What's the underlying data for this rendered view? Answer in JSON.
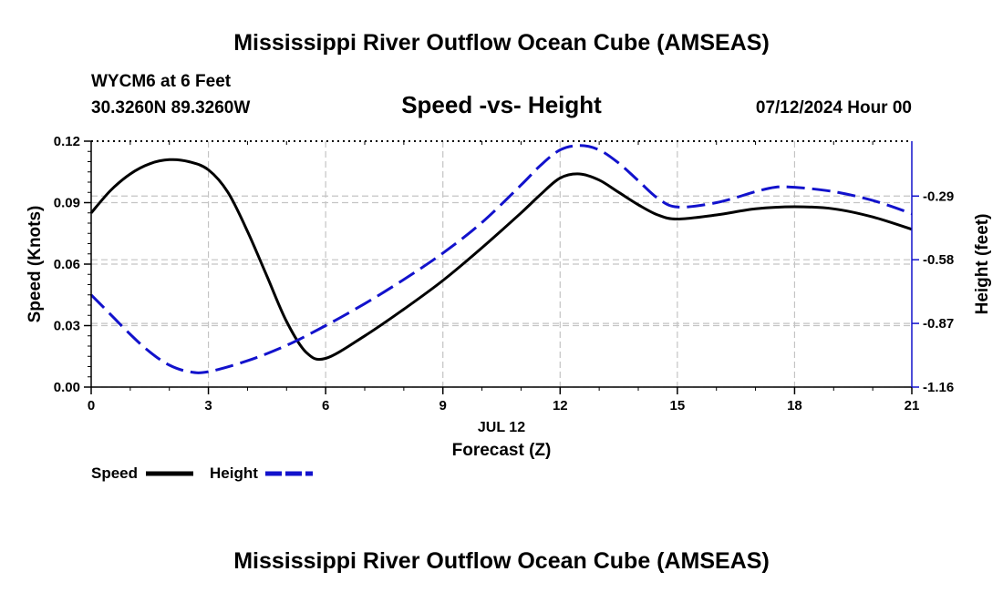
{
  "page": {
    "title": "Mississippi River Outflow Ocean Cube (AMSEAS)",
    "station": "WYCM6 at 6 Feet",
    "coordinates": "30.3260N  89.3260W",
    "datetime": "07/12/2024 Hour 00",
    "footer_title": "Mississippi River Outflow Ocean Cube (AMSEAS)"
  },
  "chart_data": {
    "type": "line",
    "title": "Speed -vs- Height",
    "xlabel": "Forecast (Z)",
    "date_label": "JUL 12",
    "ylabel": "Speed (Knots)",
    "y2label": "Height (feet)",
    "xlim": [
      0,
      21
    ],
    "ylim": [
      0,
      0.12
    ],
    "y2lim": [
      -1.16,
      -0.04
    ],
    "x_ticks": [
      0,
      3,
      6,
      9,
      12,
      15,
      18,
      21
    ],
    "x_tick_labels": [
      "0",
      "3",
      "6",
      "9",
      "12",
      "15",
      "18",
      "21"
    ],
    "y_ticks": [
      0,
      0.03,
      0.06,
      0.09,
      0.12
    ],
    "y_tick_labels": [
      "0.00",
      "0.03",
      "0.06",
      "0.09",
      "0.12"
    ],
    "y2_ticks": [
      -0.29,
      -0.58,
      -0.87,
      -1.16
    ],
    "y2_tick_labels": [
      "-0.29",
      "-0.58",
      "-0.87",
      "-1.16"
    ],
    "grid": true,
    "series": [
      {
        "name": "Speed",
        "axis": "left",
        "color": "#000000",
        "dash": "solid",
        "x": [
          0,
          0.5,
          1,
          1.5,
          2,
          2.5,
          3,
          3.5,
          4,
          4.5,
          5,
          5.5,
          6,
          7,
          8,
          9,
          10,
          11,
          11.5,
          12,
          12.5,
          13,
          13.5,
          14,
          14.5,
          15,
          16,
          17,
          18,
          19,
          20,
          21
        ],
        "values": [
          0.085,
          0.096,
          0.104,
          0.109,
          0.111,
          0.11,
          0.106,
          0.095,
          0.076,
          0.054,
          0.032,
          0.017,
          0.014,
          0.025,
          0.038,
          0.052,
          0.068,
          0.085,
          0.094,
          0.102,
          0.104,
          0.101,
          0.095,
          0.089,
          0.084,
          0.082,
          0.084,
          0.087,
          0.088,
          0.087,
          0.083,
          0.077
        ]
      },
      {
        "name": "Height",
        "axis": "right",
        "color": "#1212cc",
        "dash": "dashed",
        "x": [
          0,
          0.5,
          1,
          1.5,
          2,
          2.5,
          3,
          4,
          5,
          6,
          7,
          8,
          9,
          10,
          11,
          11.5,
          12,
          12.5,
          13,
          13.5,
          14,
          14.5,
          15,
          16,
          17,
          17.5,
          18,
          19,
          20,
          21
        ],
        "values": [
          -0.74,
          -0.83,
          -0.92,
          -1.0,
          -1.06,
          -1.09,
          -1.09,
          -1.04,
          -0.97,
          -0.88,
          -0.78,
          -0.67,
          -0.55,
          -0.41,
          -0.24,
          -0.15,
          -0.08,
          -0.06,
          -0.08,
          -0.14,
          -0.22,
          -0.3,
          -0.34,
          -0.32,
          -0.27,
          -0.25,
          -0.25,
          -0.27,
          -0.31,
          -0.37
        ]
      }
    ],
    "legend": [
      "Speed",
      "Height"
    ]
  }
}
